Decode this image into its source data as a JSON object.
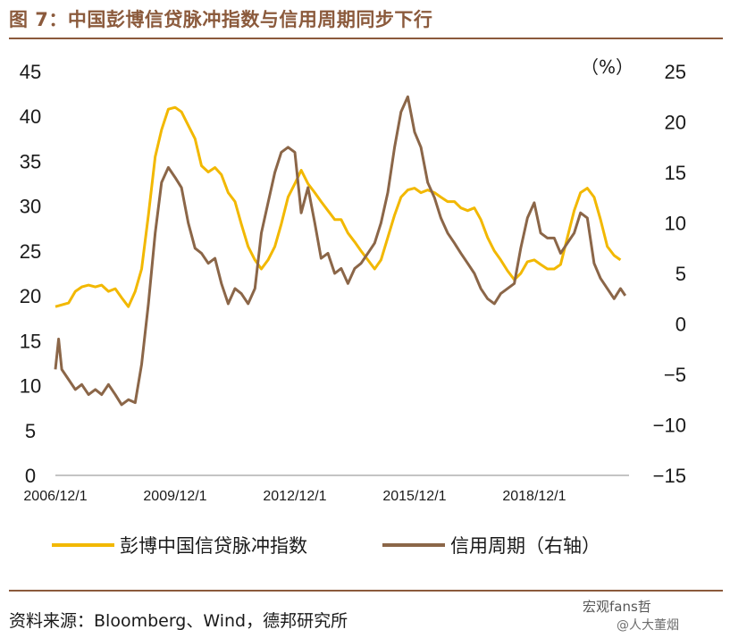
{
  "header": {
    "title": "图 7：中国彭博信贷脉冲指数与信用周期同步下行"
  },
  "footer": {
    "source": "资料来源：Bloomberg、Wind，德邦研究所"
  },
  "watermark": {
    "line1": "宏观fans哲",
    "line2": "@人大董烟"
  },
  "colors": {
    "accent": "#8b5a3c",
    "impulse": "#f2b800",
    "credit": "#8b6648"
  },
  "chart_data": {
    "type": "line",
    "title": "中国彭博信贷脉冲指数与信用周期同步下行",
    "x_ticks": [
      "2006/12/1",
      "2009/12/1",
      "2012/12/1",
      "2015/12/1",
      "2018/12/1"
    ],
    "y_left": {
      "ticks": [
        "45",
        "40",
        "35",
        "30",
        "25",
        "20",
        "15",
        "10",
        "5",
        "0"
      ],
      "range": [
        0,
        45
      ]
    },
    "y_right": {
      "ticks": [
        "25",
        "20",
        "15",
        "10",
        "5",
        "0",
        "−5",
        "−10",
        "−15"
      ],
      "range": [
        -15,
        25
      ],
      "unit": "（%）"
    },
    "series": [
      {
        "name": "彭博中国信贷脉冲指数",
        "axis": "left",
        "points": [
          [
            2006.92,
            18.8
          ],
          [
            2007.08,
            19.0
          ],
          [
            2007.25,
            19.2
          ],
          [
            2007.42,
            20.5
          ],
          [
            2007.58,
            21.0
          ],
          [
            2007.75,
            21.2
          ],
          [
            2007.92,
            21.0
          ],
          [
            2008.08,
            21.2
          ],
          [
            2008.25,
            20.5
          ],
          [
            2008.42,
            20.8
          ],
          [
            2008.58,
            19.8
          ],
          [
            2008.75,
            18.8
          ],
          [
            2008.92,
            20.5
          ],
          [
            2009.08,
            23.0
          ],
          [
            2009.25,
            29.0
          ],
          [
            2009.42,
            35.5
          ],
          [
            2009.58,
            38.5
          ],
          [
            2009.75,
            40.8
          ],
          [
            2009.92,
            41.0
          ],
          [
            2010.08,
            40.5
          ],
          [
            2010.25,
            39.0
          ],
          [
            2010.42,
            37.5
          ],
          [
            2010.58,
            34.5
          ],
          [
            2010.75,
            33.8
          ],
          [
            2010.92,
            34.3
          ],
          [
            2011.08,
            33.5
          ],
          [
            2011.25,
            31.5
          ],
          [
            2011.42,
            30.5
          ],
          [
            2011.58,
            28.0
          ],
          [
            2011.75,
            25.5
          ],
          [
            2011.92,
            24.0
          ],
          [
            2012.08,
            23.0
          ],
          [
            2012.25,
            24.0
          ],
          [
            2012.42,
            25.5
          ],
          [
            2012.58,
            28.0
          ],
          [
            2012.75,
            31.0
          ],
          [
            2012.92,
            32.5
          ],
          [
            2013.08,
            34.0
          ],
          [
            2013.25,
            32.5
          ],
          [
            2013.42,
            31.5
          ],
          [
            2013.58,
            30.5
          ],
          [
            2013.75,
            29.5
          ],
          [
            2013.92,
            28.5
          ],
          [
            2014.08,
            28.5
          ],
          [
            2014.25,
            27.0
          ],
          [
            2014.42,
            26.0
          ],
          [
            2014.58,
            25.0
          ],
          [
            2014.75,
            24.0
          ],
          [
            2014.92,
            23.0
          ],
          [
            2015.08,
            24.0
          ],
          [
            2015.25,
            26.5
          ],
          [
            2015.42,
            29.0
          ],
          [
            2015.58,
            31.0
          ],
          [
            2015.75,
            31.8
          ],
          [
            2015.92,
            32.0
          ],
          [
            2016.08,
            31.5
          ],
          [
            2016.25,
            31.8
          ],
          [
            2016.42,
            31.5
          ],
          [
            2016.58,
            31.0
          ],
          [
            2016.75,
            30.5
          ],
          [
            2016.92,
            30.5
          ],
          [
            2017.08,
            29.8
          ],
          [
            2017.25,
            29.5
          ],
          [
            2017.42,
            29.8
          ],
          [
            2017.58,
            28.5
          ],
          [
            2017.75,
            26.5
          ],
          [
            2017.92,
            25.0
          ],
          [
            2018.08,
            24.0
          ],
          [
            2018.25,
            22.8
          ],
          [
            2018.42,
            21.8
          ],
          [
            2018.58,
            22.5
          ],
          [
            2018.75,
            23.8
          ],
          [
            2018.92,
            24.0
          ],
          [
            2019.08,
            23.5
          ],
          [
            2019.25,
            23.0
          ],
          [
            2019.42,
            23.0
          ],
          [
            2019.58,
            23.5
          ],
          [
            2019.75,
            26.5
          ],
          [
            2019.92,
            29.5
          ],
          [
            2020.08,
            31.5
          ],
          [
            2020.25,
            32.0
          ],
          [
            2020.42,
            31.0
          ],
          [
            2020.58,
            28.5
          ],
          [
            2020.75,
            25.5
          ],
          [
            2020.92,
            24.5
          ],
          [
            2021.08,
            24.0
          ]
        ]
      },
      {
        "name": "信用周期（右轴）",
        "axis": "right",
        "points": [
          [
            2006.92,
            -4.5
          ],
          [
            2007.0,
            -1.5
          ],
          [
            2007.08,
            -4.5
          ],
          [
            2007.25,
            -5.5
          ],
          [
            2007.42,
            -6.5
          ],
          [
            2007.58,
            -6.0
          ],
          [
            2007.75,
            -7.0
          ],
          [
            2007.92,
            -6.5
          ],
          [
            2008.08,
            -7.0
          ],
          [
            2008.25,
            -6.0
          ],
          [
            2008.42,
            -7.0
          ],
          [
            2008.58,
            -8.0
          ],
          [
            2008.75,
            -7.5
          ],
          [
            2008.92,
            -7.8
          ],
          [
            2009.08,
            -4.0
          ],
          [
            2009.25,
            2.0
          ],
          [
            2009.42,
            9.0
          ],
          [
            2009.58,
            14.0
          ],
          [
            2009.75,
            15.5
          ],
          [
            2009.92,
            14.5
          ],
          [
            2010.08,
            13.5
          ],
          [
            2010.25,
            10.0
          ],
          [
            2010.42,
            7.5
          ],
          [
            2010.58,
            7.0
          ],
          [
            2010.75,
            6.0
          ],
          [
            2010.92,
            6.5
          ],
          [
            2011.08,
            4.0
          ],
          [
            2011.25,
            2.0
          ],
          [
            2011.42,
            3.5
          ],
          [
            2011.58,
            3.0
          ],
          [
            2011.75,
            2.0
          ],
          [
            2011.92,
            3.5
          ],
          [
            2012.08,
            9.0
          ],
          [
            2012.25,
            12.0
          ],
          [
            2012.42,
            15.0
          ],
          [
            2012.58,
            17.0
          ],
          [
            2012.75,
            17.5
          ],
          [
            2012.92,
            17.0
          ],
          [
            2013.08,
            11.0
          ],
          [
            2013.25,
            13.5
          ],
          [
            2013.42,
            10.0
          ],
          [
            2013.58,
            6.5
          ],
          [
            2013.75,
            7.0
          ],
          [
            2013.92,
            5.0
          ],
          [
            2014.08,
            5.5
          ],
          [
            2014.25,
            4.0
          ],
          [
            2014.42,
            5.5
          ],
          [
            2014.58,
            6.0
          ],
          [
            2014.75,
            7.0
          ],
          [
            2014.92,
            8.0
          ],
          [
            2015.08,
            10.0
          ],
          [
            2015.25,
            13.0
          ],
          [
            2015.42,
            17.5
          ],
          [
            2015.58,
            21.0
          ],
          [
            2015.75,
            22.5
          ],
          [
            2015.92,
            19.0
          ],
          [
            2016.08,
            17.5
          ],
          [
            2016.25,
            14.0
          ],
          [
            2016.42,
            12.5
          ],
          [
            2016.58,
            10.5
          ],
          [
            2016.75,
            9.0
          ],
          [
            2016.92,
            8.0
          ],
          [
            2017.08,
            7.0
          ],
          [
            2017.25,
            6.0
          ],
          [
            2017.42,
            5.0
          ],
          [
            2017.58,
            3.5
          ],
          [
            2017.75,
            2.5
          ],
          [
            2017.92,
            2.0
          ],
          [
            2018.08,
            3.0
          ],
          [
            2018.25,
            3.5
          ],
          [
            2018.42,
            4.0
          ],
          [
            2018.58,
            7.5
          ],
          [
            2018.75,
            10.5
          ],
          [
            2018.92,
            12.0
          ],
          [
            2019.08,
            9.0
          ],
          [
            2019.25,
            8.5
          ],
          [
            2019.42,
            8.5
          ],
          [
            2019.58,
            7.0
          ],
          [
            2019.75,
            8.0
          ],
          [
            2019.92,
            9.0
          ],
          [
            2020.08,
            11.0
          ],
          [
            2020.25,
            10.5
          ],
          [
            2020.42,
            6.0
          ],
          [
            2020.58,
            4.5
          ],
          [
            2020.75,
            3.5
          ],
          [
            2020.92,
            2.5
          ],
          [
            2021.08,
            3.5
          ],
          [
            2021.2,
            2.8
          ]
        ]
      }
    ],
    "legend": [
      "彭博中国信贷脉冲指数",
      "信用周期（右轴）"
    ],
    "grid": false,
    "legend_position": "bottom"
  }
}
